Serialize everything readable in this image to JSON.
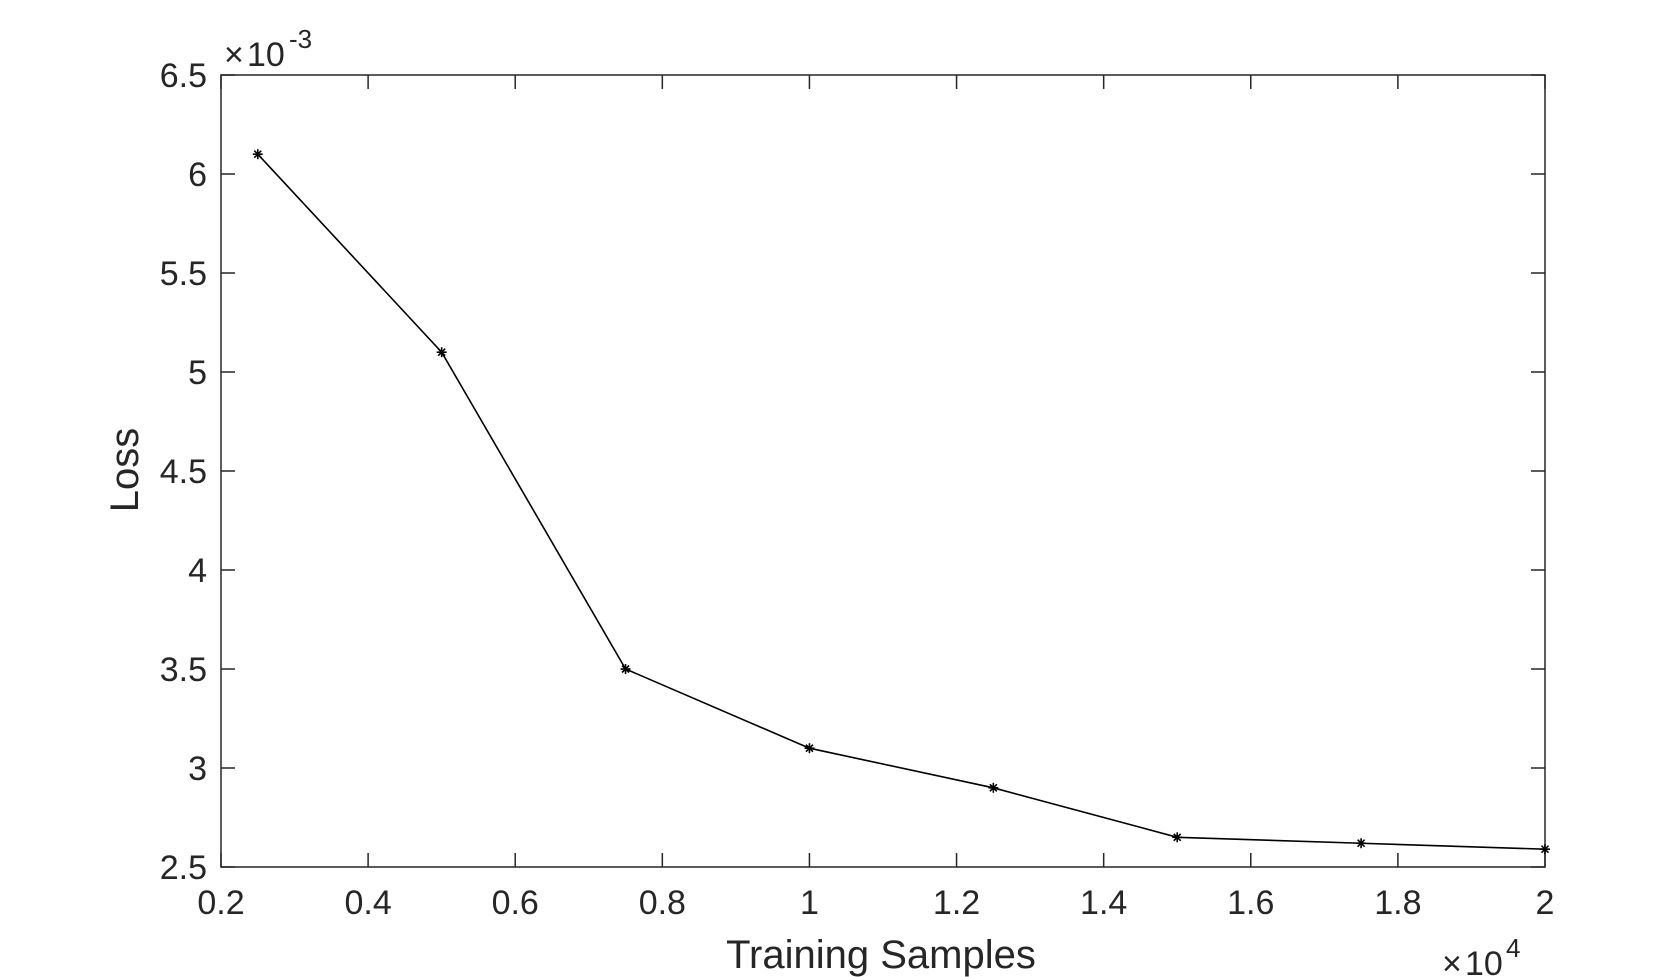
{
  "chart_data": {
    "type": "line",
    "title": "",
    "xlabel": "Training Samples",
    "ylabel": "Loss",
    "x_exponent": {
      "base": "10",
      "power": "4"
    },
    "y_exponent": {
      "base": "10",
      "power": "-3"
    },
    "xlim": [
      2000,
      20000
    ],
    "ylim": [
      0.0025,
      0.0065
    ],
    "xticks": [
      2000,
      4000,
      6000,
      8000,
      10000,
      12000,
      14000,
      16000,
      18000,
      20000
    ],
    "xtick_labels": [
      "0.2",
      "0.4",
      "0.6",
      "0.8",
      "1",
      "1.2",
      "1.4",
      "1.6",
      "1.8",
      "2"
    ],
    "yticks": [
      0.0025,
      0.003,
      0.0035,
      0.004,
      0.0045,
      0.005,
      0.0055,
      0.006,
      0.0065
    ],
    "ytick_labels": [
      "2.5",
      "3",
      "3.5",
      "4",
      "4.5",
      "5",
      "5.5",
      "6",
      "6.5"
    ],
    "grid": false,
    "marker": "asterisk",
    "line_color": "#000000",
    "axis_color": "#262626",
    "series": [
      {
        "x": [
          2500,
          5000,
          7500,
          10000,
          12500,
          15000,
          17500,
          20000
        ],
        "y": [
          0.0061,
          0.0051,
          0.0035,
          0.0031,
          0.0029,
          0.00265,
          0.00262,
          0.00259
        ]
      }
    ]
  }
}
